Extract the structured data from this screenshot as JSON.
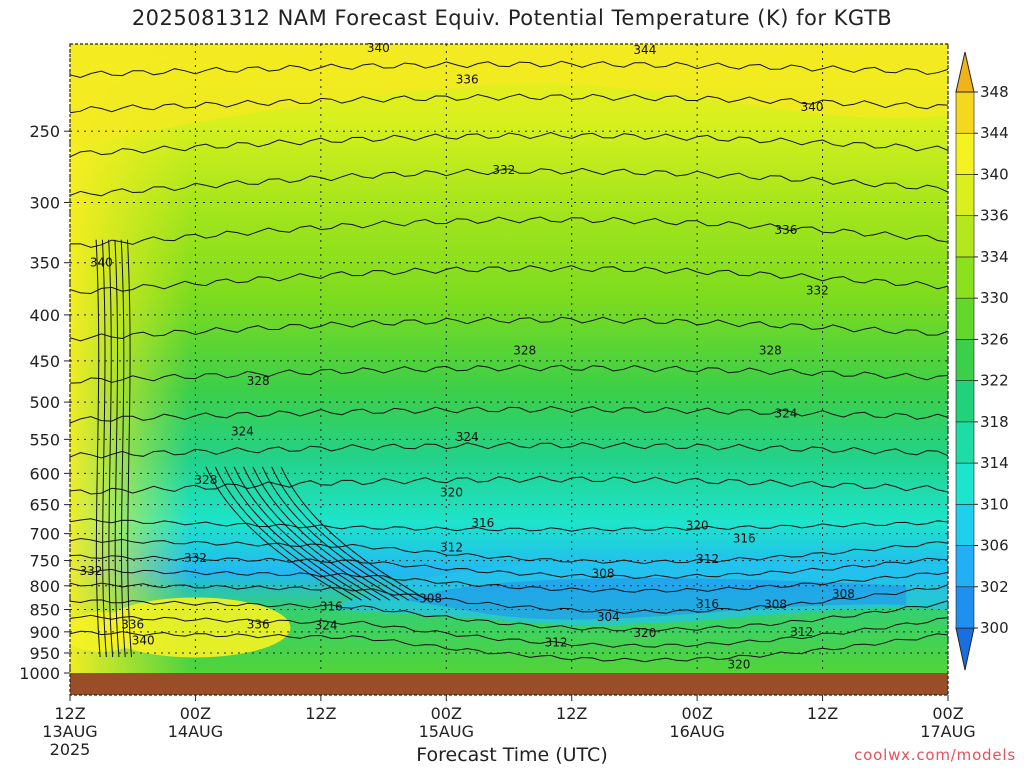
{
  "title": "2025081312 NAM Forecast Equiv. Potential Temperature (K) for KGTB",
  "credit": "coolwx.com/models",
  "chart_data": {
    "type": "heatmap",
    "title": "2025081312 NAM Forecast Equiv. Potential Temperature (K) for KGTB",
    "xlabel": "Forecast Time (UTC)",
    "ylabel": "",
    "y_scale": "log-pressure",
    "ylim": [
      1000,
      200
    ],
    "y_ticks": [
      250,
      300,
      350,
      400,
      450,
      500,
      550,
      600,
      650,
      700,
      750,
      800,
      850,
      900,
      950,
      1000
    ],
    "x_ticks": [
      {
        "hour": 0,
        "top": "12Z",
        "mid": "13AUG",
        "bottom": "2025"
      },
      {
        "hour": 12,
        "top": "00Z",
        "mid": "14AUG",
        "bottom": ""
      },
      {
        "hour": 24,
        "top": "12Z",
        "mid": "",
        "bottom": ""
      },
      {
        "hour": 36,
        "top": "00Z",
        "mid": "15AUG",
        "bottom": ""
      },
      {
        "hour": 48,
        "top": "12Z",
        "mid": "",
        "bottom": ""
      },
      {
        "hour": 60,
        "top": "00Z",
        "mid": "16AUG",
        "bottom": ""
      },
      {
        "hour": 72,
        "top": "12Z",
        "mid": "",
        "bottom": ""
      },
      {
        "hour": 84,
        "top": "00Z",
        "mid": "17AUG",
        "bottom": ""
      }
    ],
    "xlim": [
      0,
      84
    ],
    "grid": true,
    "colorbar": {
      "levels": [
        300,
        302,
        306,
        310,
        314,
        318,
        322,
        326,
        330,
        334,
        336,
        340,
        344,
        348
      ],
      "colors": [
        "#1a6fe0",
        "#1f8ff0",
        "#22aff5",
        "#1ecfee",
        "#1de4cc",
        "#1ddca4",
        "#22d27a",
        "#3ad04a",
        "#63d82a",
        "#8ce11e",
        "#b4e81c",
        "#d9f01e",
        "#f5f222",
        "#f5d81e",
        "#f0b41a"
      ]
    },
    "contour_labels": [
      {
        "hour": 29.5,
        "p": 202,
        "value": 340
      },
      {
        "hour": 55.0,
        "p": 203,
        "value": 344
      },
      {
        "hour": 38.0,
        "p": 219,
        "value": 336
      },
      {
        "hour": 71.0,
        "p": 235,
        "value": 340
      },
      {
        "hour": 41.5,
        "p": 276,
        "value": 332
      },
      {
        "hour": 68.5,
        "p": 322,
        "value": 336
      },
      {
        "hour": 3.0,
        "p": 350,
        "value": 340
      },
      {
        "hour": 71.5,
        "p": 376,
        "value": 332
      },
      {
        "hour": 43.5,
        "p": 438,
        "value": 328
      },
      {
        "hour": 67.0,
        "p": 438,
        "value": 328
      },
      {
        "hour": 18.0,
        "p": 474,
        "value": 328
      },
      {
        "hour": 68.5,
        "p": 515,
        "value": 324
      },
      {
        "hour": 16.5,
        "p": 539,
        "value": 324
      },
      {
        "hour": 38.0,
        "p": 547,
        "value": 324
      },
      {
        "hour": 13.0,
        "p": 610,
        "value": 328
      },
      {
        "hour": 36.5,
        "p": 630,
        "value": 320
      },
      {
        "hour": 39.5,
        "p": 681,
        "value": 316
      },
      {
        "hour": 60.0,
        "p": 686,
        "value": 320
      },
      {
        "hour": 64.5,
        "p": 709,
        "value": 316
      },
      {
        "hour": 36.5,
        "p": 725,
        "value": 312
      },
      {
        "hour": 12.0,
        "p": 745,
        "value": 332
      },
      {
        "hour": 61.0,
        "p": 747,
        "value": 312
      },
      {
        "hour": 2.0,
        "p": 770,
        "value": 332
      },
      {
        "hour": 51.0,
        "p": 775,
        "value": 308
      },
      {
        "hour": 74.0,
        "p": 817,
        "value": 308
      },
      {
        "hour": 34.5,
        "p": 826,
        "value": 308
      },
      {
        "hour": 67.5,
        "p": 839,
        "value": 308
      },
      {
        "hour": 25.0,
        "p": 843,
        "value": 316
      },
      {
        "hour": 61.0,
        "p": 838,
        "value": 316
      },
      {
        "hour": 51.5,
        "p": 866,
        "value": 304
      },
      {
        "hour": 6.0,
        "p": 883,
        "value": 336
      },
      {
        "hour": 18.0,
        "p": 883,
        "value": 336
      },
      {
        "hour": 24.5,
        "p": 886,
        "value": 324
      },
      {
        "hour": 70.0,
        "p": 900,
        "value": 312
      },
      {
        "hour": 55.0,
        "p": 903,
        "value": 320
      },
      {
        "hour": 7.0,
        "p": 920,
        "value": 340
      },
      {
        "hour": 46.5,
        "p": 925,
        "value": 312
      },
      {
        "hour": 64.0,
        "p": 978,
        "value": 320
      }
    ]
  }
}
